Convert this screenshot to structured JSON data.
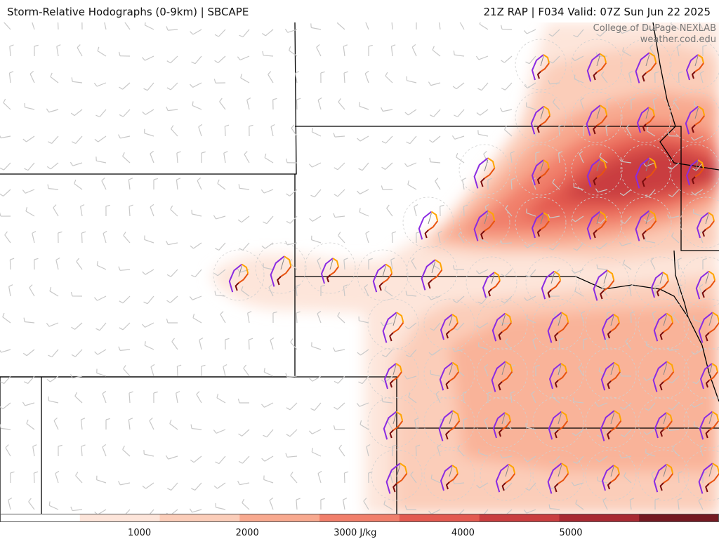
{
  "header": {
    "title_left": "Storm-Relative Hodographs (0-9km) | SBCAPE",
    "title_right": "21Z RAP | F034 Valid: 07Z Sun Jun 22 2025"
  },
  "credit": {
    "line1": "College of DuPage NEXLAB",
    "line2": "weather.cod.edu"
  },
  "colorbar": {
    "unit": "J/kg",
    "min": 0,
    "max": 6000,
    "ticks": [
      {
        "value": 1000,
        "label": "1000"
      },
      {
        "value": 2000,
        "label": "2000"
      },
      {
        "value": 3000,
        "label": "3000 J/kg"
      },
      {
        "value": 4000,
        "label": "4000"
      },
      {
        "value": 5000,
        "label": "5000"
      }
    ],
    "colors": [
      "#ffffff",
      "#fde5da",
      "#fbcdb9",
      "#f8a98f",
      "#f17f6b",
      "#e35a50",
      "#c93e3f",
      "#a82a32",
      "#751a22"
    ]
  },
  "legend_colors": {
    "hodo_0_1km": "#7a0c0c",
    "hodo_1_3km": "#e8520f",
    "hodo_3_6km": "#ffa500",
    "hodo_6_9km": "#8a2be2",
    "state_border": "#000000",
    "wind_barb": "#c8c8c8"
  }
}
